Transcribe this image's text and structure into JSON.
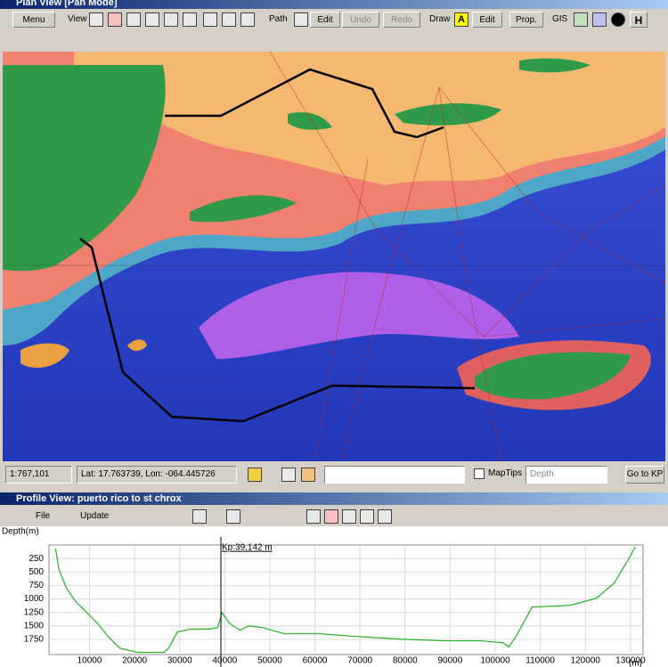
{
  "plan_view": {
    "title": "Plan View [Pan Mode]",
    "toolbar": {
      "menu": "Menu",
      "view": "View",
      "path": "Path",
      "path_edit": "Edit",
      "undo": "Undo",
      "redo": "Redo",
      "draw": "Draw",
      "draw_icon": "A",
      "draw_edit": "Edit",
      "prop": "Prop.",
      "gis": "GIS",
      "h": "H"
    },
    "status": {
      "scale": "1:767,101",
      "coords": "Lat: 17.763739, Lon: -064.445726",
      "maptips": "MapTips",
      "layer": "Depth",
      "goto": "Go to KP"
    }
  },
  "profile_view": {
    "title": "Profile View: puerto rico to st chrox",
    "toolbar": {
      "file": "File",
      "update": "Update"
    }
  },
  "chart_data": {
    "type": "line",
    "y_label": "Depth(m)",
    "x_label": "(m)",
    "x": [
      2450,
      3240,
      4820,
      6800,
      8770,
      11740,
      14110,
      16680,
      20630,
      26560,
      27540,
      29520,
      32480,
      36440,
      38420,
      39400,
      41000,
      43370,
      45340,
      48300,
      53250,
      61150,
      69050,
      78940,
      88820,
      96720,
      101660,
      103040,
      104620,
      108180,
      116480,
      122410,
      126360,
      129330,
      131110
    ],
    "series": [
      {
        "color": "#22b022",
        "values": [
          66,
          460,
          790,
          1036,
          1200,
          1450,
          1695,
          1910,
          1990,
          1990,
          1910,
          1610,
          1560,
          1560,
          1530,
          1250,
          1450,
          1580,
          1500,
          1530,
          1645,
          1645,
          1695,
          1745,
          1775,
          1775,
          1810,
          1890,
          1695,
          1150,
          1120,
          990,
          710,
          296,
          33
        ]
      }
    ],
    "xlim": [
      1000,
      132800
    ],
    "ylim": [
      0,
      2030
    ],
    "y_inverted": true,
    "xticks": [
      10000,
      20000,
      30000,
      40000,
      50000,
      60000,
      70000,
      80000,
      90000,
      100000,
      110000,
      120000,
      130000
    ],
    "yticks": [
      250,
      500,
      750,
      1000,
      1250,
      1500,
      1750
    ],
    "grid": true,
    "marker": {
      "value": 39142,
      "label": "Kp:39,142 m"
    }
  }
}
